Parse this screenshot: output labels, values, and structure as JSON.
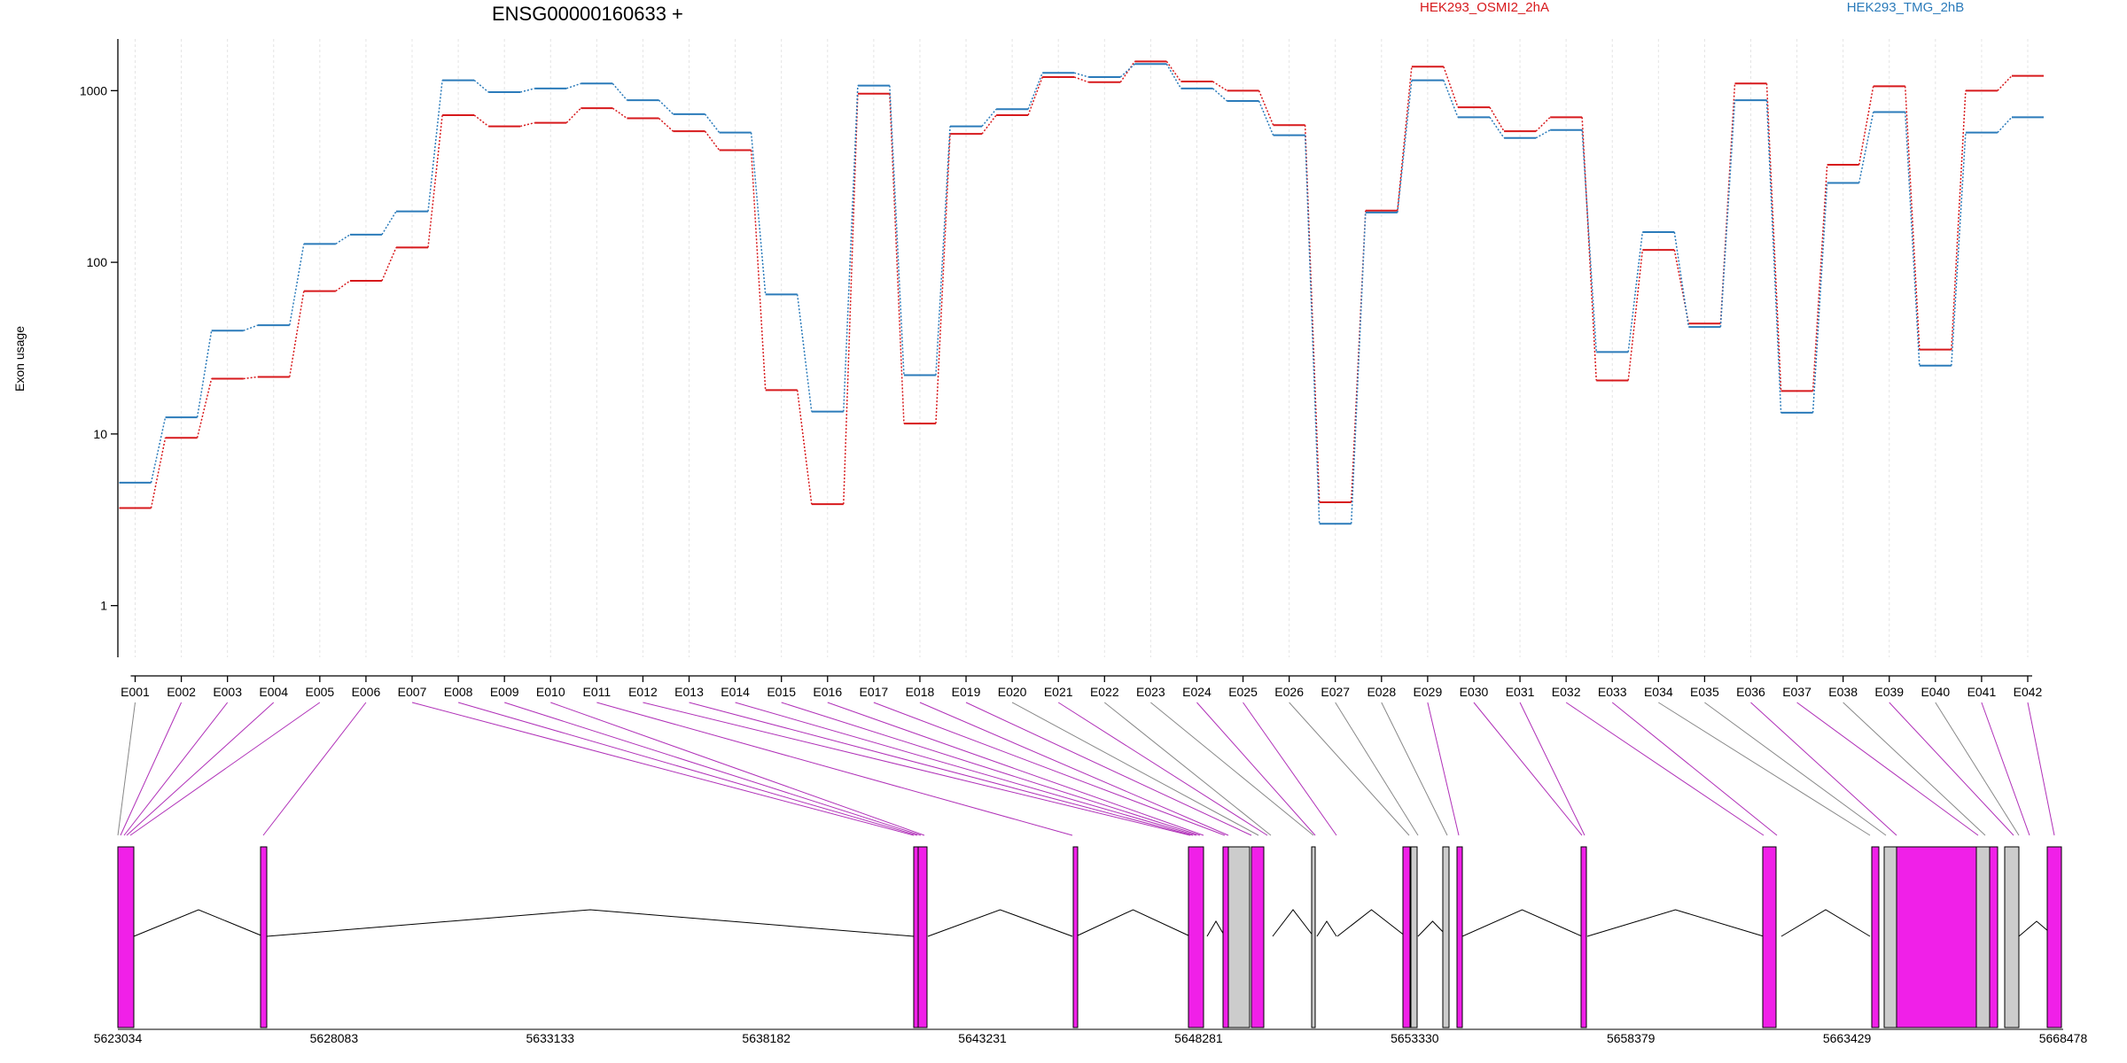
{
  "chart_data": {
    "type": "line",
    "title": "ENSG00000160633 +",
    "ylabel": "Exon usage",
    "yscale": "log",
    "ylim": [
      0.5,
      2000
    ],
    "yticks": [
      1,
      10,
      100,
      1000
    ],
    "ytick_labels": [
      "1",
      "10",
      "100",
      "1000"
    ],
    "grid": true,
    "legend_placement": "top",
    "categories": [
      "E001",
      "E002",
      "E003",
      "E004",
      "E005",
      "E006",
      "E007",
      "E008",
      "E009",
      "E010",
      "E011",
      "E012",
      "E013",
      "E014",
      "E015",
      "E016",
      "E017",
      "E018",
      "E019",
      "E020",
      "E021",
      "E022",
      "E023",
      "E024",
      "E025",
      "E026",
      "E027",
      "E028",
      "E029",
      "E030",
      "E031",
      "E032",
      "E033",
      "E034",
      "E035",
      "E036",
      "E037",
      "E038",
      "E039",
      "E040",
      "E041",
      "E042"
    ],
    "series": [
      {
        "name": "HEK293_OSMI2_2hA",
        "color": "#d7191c",
        "values": [
          3.7,
          9.5,
          21,
          21.5,
          68,
          78,
          122,
          720,
          620,
          650,
          790,
          690,
          580,
          450,
          18,
          3.9,
          960,
          11.5,
          560,
          720,
          1200,
          1120,
          1480,
          1130,
          1000,
          630,
          4.0,
          200,
          1380,
          800,
          580,
          700,
          20.5,
          118,
          44,
          1100,
          17.8,
          370,
          1060,
          31,
          1000,
          1220
        ]
      },
      {
        "name": "HEK293_TMG_2hB",
        "color": "#2b7bba",
        "values": [
          5.2,
          12.5,
          40,
          43,
          128,
          145,
          198,
          1150,
          980,
          1030,
          1100,
          880,
          730,
          570,
          65,
          13.5,
          1070,
          22,
          620,
          780,
          1270,
          1200,
          1430,
          1030,
          870,
          550,
          3.0,
          195,
          1150,
          700,
          530,
          590,
          30,
          150,
          42,
          880,
          13.3,
          290,
          750,
          25,
          570,
          700
        ]
      }
    ],
    "gene_model": {
      "coordinate_ticks": [
        "5623034",
        "5628083",
        "5633133",
        "5638182",
        "5643231",
        "5648281",
        "5653330",
        "5658379",
        "5663429",
        "5668478"
      ],
      "exons": [
        {
          "id": "E001",
          "color": "gray"
        },
        {
          "id": "E002",
          "color": "magenta"
        },
        {
          "id": "E003",
          "color": "magenta"
        },
        {
          "id": "E004",
          "color": "magenta"
        },
        {
          "id": "E005",
          "color": "magenta"
        },
        {
          "id": "E006",
          "color": "magenta"
        },
        {
          "id": "E007",
          "color": "magenta"
        },
        {
          "id": "E008",
          "color": "magenta"
        },
        {
          "id": "E009",
          "color": "magenta"
        },
        {
          "id": "E010",
          "color": "magenta"
        },
        {
          "id": "E011",
          "color": "magenta"
        },
        {
          "id": "E012",
          "color": "magenta"
        },
        {
          "id": "E013",
          "color": "magenta"
        },
        {
          "id": "E014",
          "color": "magenta"
        },
        {
          "id": "E015",
          "color": "magenta"
        },
        {
          "id": "E016",
          "color": "magenta"
        },
        {
          "id": "E017",
          "color": "magenta"
        },
        {
          "id": "E018",
          "color": "magenta"
        },
        {
          "id": "E019",
          "color": "magenta"
        },
        {
          "id": "E020",
          "color": "gray"
        },
        {
          "id": "E021",
          "color": "magenta"
        },
        {
          "id": "E022",
          "color": "gray"
        },
        {
          "id": "E023",
          "color": "gray"
        },
        {
          "id": "E024",
          "color": "magenta"
        },
        {
          "id": "E025",
          "color": "magenta"
        },
        {
          "id": "E026",
          "color": "gray"
        },
        {
          "id": "E027",
          "color": "gray"
        },
        {
          "id": "E028",
          "color": "gray"
        },
        {
          "id": "E029",
          "color": "magenta"
        },
        {
          "id": "E030",
          "color": "magenta"
        },
        {
          "id": "E031",
          "color": "magenta"
        },
        {
          "id": "E032",
          "color": "magenta"
        },
        {
          "id": "E033",
          "color": "magenta"
        },
        {
          "id": "E034",
          "color": "gray"
        },
        {
          "id": "E035",
          "color": "gray"
        },
        {
          "id": "E036",
          "color": "magenta"
        },
        {
          "id": "E037",
          "color": "magenta"
        },
        {
          "id": "E038",
          "color": "gray"
        },
        {
          "id": "E039",
          "color": "magenta"
        },
        {
          "id": "E040",
          "color": "gray"
        },
        {
          "id": "E041",
          "color": "magenta"
        },
        {
          "id": "E042",
          "color": "magenta"
        }
      ]
    }
  }
}
